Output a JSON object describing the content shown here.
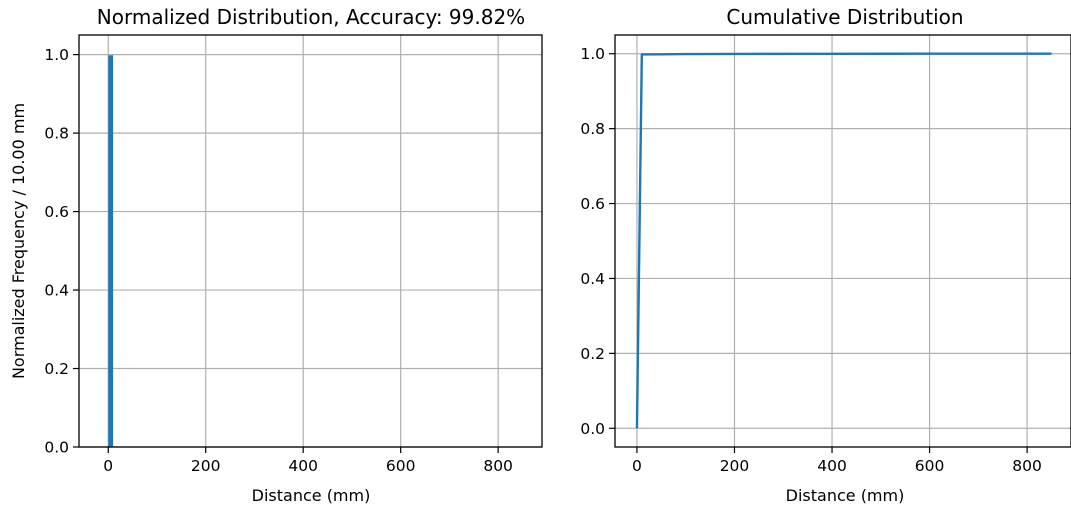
{
  "chart_data": [
    {
      "type": "bar",
      "title": "Normalized Distribution, Accuracy: 99.82%",
      "xlabel": "Distance (mm)",
      "ylabel": "Normalized Frequency / 10.00 mm",
      "xlim": [
        -60,
        890
      ],
      "ylim": [
        0,
        1.05
      ],
      "x_ticks": [
        "0",
        "200",
        "400",
        "600",
        "800"
      ],
      "y_ticks": [
        "0.0",
        "0.2",
        "0.4",
        "0.6",
        "0.8",
        "1.0"
      ],
      "grid": true,
      "bins": [
        {
          "x_start": 0,
          "x_end": 10,
          "value": 0.9982
        }
      ],
      "color": "#1f77b4"
    },
    {
      "type": "line",
      "title": "Cumulative Distribution",
      "xlabel": "Distance (mm)",
      "ylabel": "",
      "xlim": [
        -45,
        890
      ],
      "ylim": [
        -0.05,
        1.05
      ],
      "x_ticks": [
        "0",
        "200",
        "400",
        "600",
        "800"
      ],
      "y_ticks": [
        "0.0",
        "0.2",
        "0.4",
        "0.6",
        "0.8",
        "1.0"
      ],
      "grid": true,
      "x": [
        0,
        10,
        50,
        100,
        200,
        400,
        600,
        850
      ],
      "y": [
        0.0,
        0.9982,
        0.9985,
        0.999,
        0.9995,
        0.9998,
        1.0,
        1.0
      ],
      "color": "#1f77b4"
    }
  ]
}
